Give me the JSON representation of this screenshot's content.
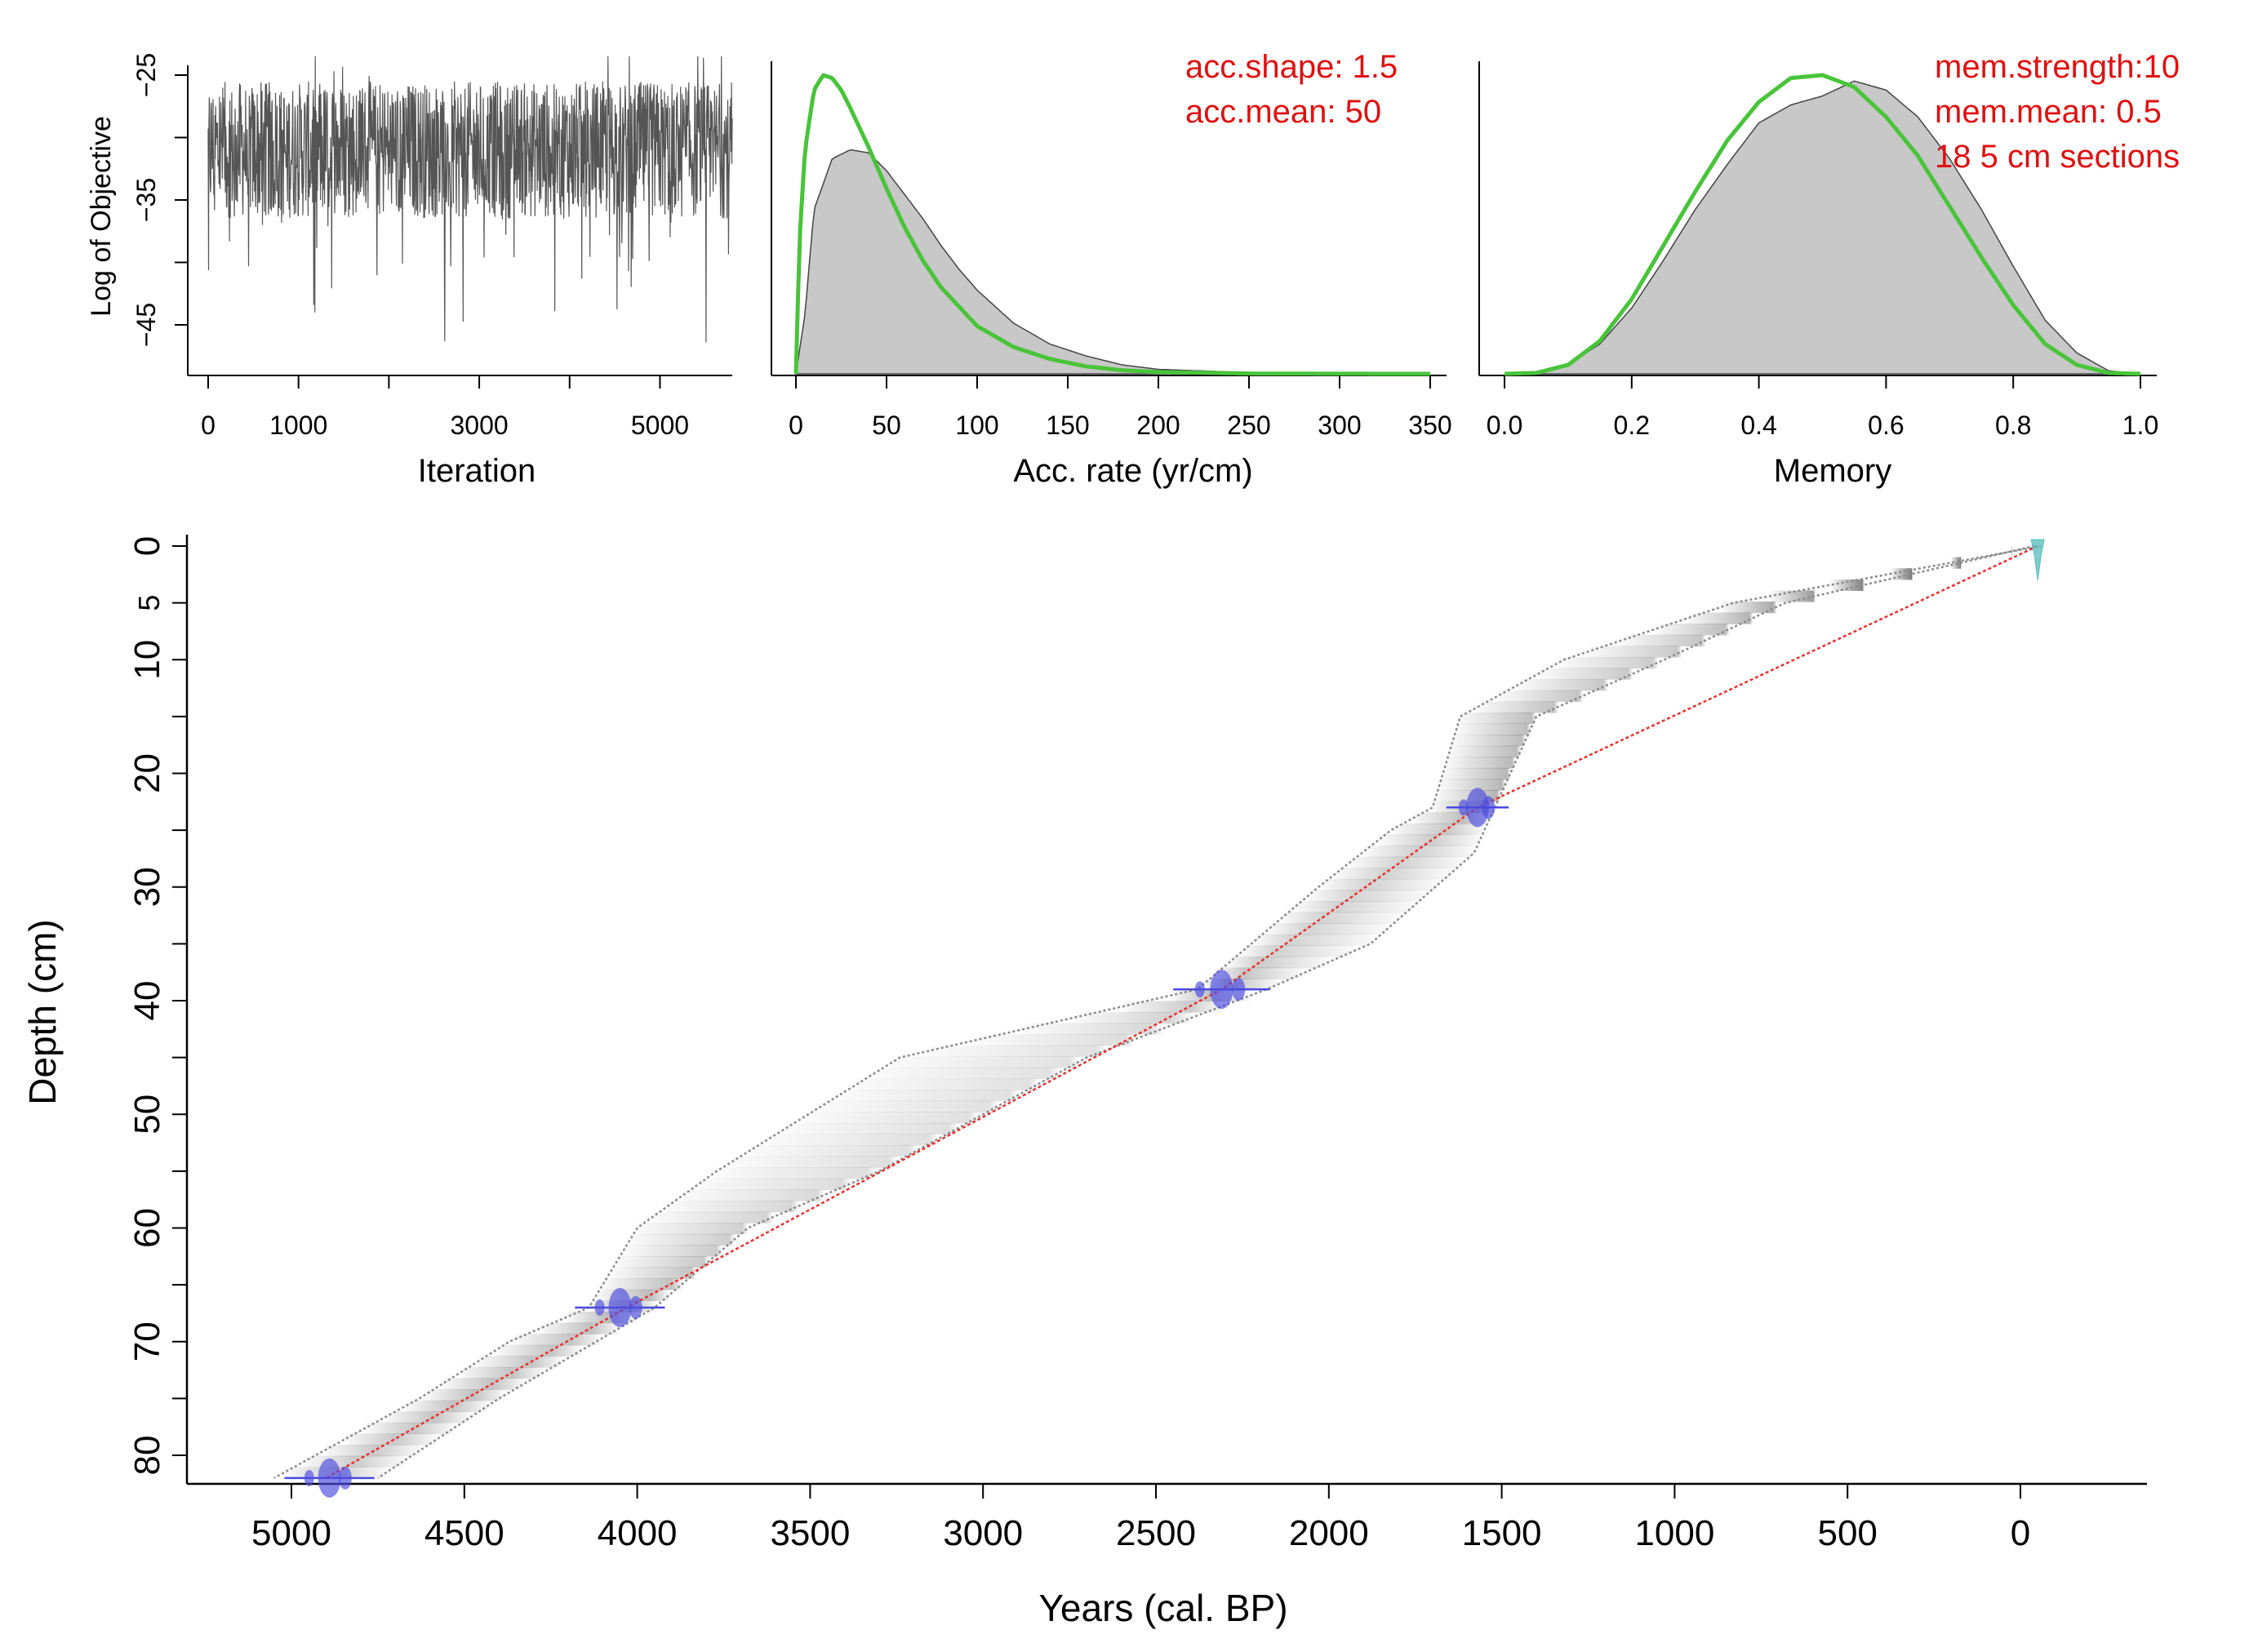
{
  "colors": {
    "trace": "#555555",
    "hist_fill": "#c8c8c8",
    "prior": "#49c43a",
    "mean_line": "#e83030",
    "ci_line": "#8a8a8a",
    "date_blue": "#4a4ae0",
    "date_cyan": "#5fbfbf",
    "annotation": "#e01010"
  },
  "chart_data": [
    {
      "type": "line",
      "name": "MCMC iteration trace",
      "xlabel": "Iteration",
      "ylabel": "Log of Objective",
      "xlim": [
        0,
        5800
      ],
      "ylim": [
        -48,
        -23
      ],
      "xticks": [
        0,
        1000,
        3000,
        5000
      ],
      "xticks_minor": [
        2000,
        4000
      ],
      "yticks": [
        -25,
        -35,
        -45
      ],
      "yticks_minor": [
        -30,
        -40
      ],
      "series": [
        {
          "name": "trace",
          "iterations": 5800,
          "mean": -31,
          "typical_range": [
            -38,
            -26
          ]
        }
      ]
    },
    {
      "type": "area",
      "name": "Accumulation rate prior and posterior",
      "xlabel": "Acc. rate (yr/cm)",
      "xlim": [
        0,
        350
      ],
      "xticks": [
        0,
        50,
        100,
        150,
        200,
        250,
        300,
        350
      ],
      "annotations": [
        "acc.shape: 1.5",
        "acc.mean: 50"
      ],
      "series": [
        {
          "name": "posterior",
          "x": [
            0,
            5,
            10,
            20,
            30,
            40,
            50,
            60,
            70,
            80,
            90,
            100,
            120,
            140,
            160,
            180,
            200,
            250,
            300,
            350
          ],
          "y": [
            0,
            0.2,
            0.55,
            0.72,
            0.75,
            0.74,
            0.68,
            0.6,
            0.52,
            0.43,
            0.35,
            0.28,
            0.17,
            0.1,
            0.06,
            0.03,
            0.015,
            0.004,
            0.001,
            0
          ]
        },
        {
          "name": "prior",
          "x": [
            0,
            2,
            5,
            10,
            15,
            20,
            25,
            30,
            40,
            50,
            60,
            70,
            80,
            100,
            120,
            140,
            160,
            180,
            200,
            250,
            300,
            350
          ],
          "y": [
            0,
            0.45,
            0.75,
            0.95,
            1.0,
            0.99,
            0.95,
            0.89,
            0.76,
            0.62,
            0.49,
            0.38,
            0.29,
            0.16,
            0.09,
            0.05,
            0.025,
            0.012,
            0.006,
            0.001,
            0.0002,
            0
          ]
        }
      ]
    },
    {
      "type": "area",
      "name": "Memory prior and posterior",
      "xlabel": "Memory",
      "xlim": [
        0,
        1
      ],
      "xticks": [
        0.0,
        0.2,
        0.4,
        0.6,
        0.8,
        1.0
      ],
      "annotations": [
        "mem.strength:10",
        "mem.mean: 0.5",
        "18 5 cm sections"
      ],
      "series": [
        {
          "name": "posterior",
          "x": [
            0,
            0.05,
            0.1,
            0.15,
            0.2,
            0.25,
            0.3,
            0.35,
            0.4,
            0.45,
            0.5,
            0.55,
            0.6,
            0.65,
            0.7,
            0.75,
            0.8,
            0.85,
            0.9,
            0.95,
            1.0
          ],
          "y": [
            0,
            0.005,
            0.03,
            0.1,
            0.22,
            0.38,
            0.55,
            0.7,
            0.84,
            0.9,
            0.93,
            0.98,
            0.95,
            0.86,
            0.72,
            0.55,
            0.36,
            0.18,
            0.07,
            0.01,
            0
          ]
        },
        {
          "name": "prior",
          "x": [
            0,
            0.05,
            0.1,
            0.15,
            0.2,
            0.25,
            0.3,
            0.35,
            0.4,
            0.45,
            0.5,
            0.55,
            0.6,
            0.65,
            0.7,
            0.75,
            0.8,
            0.85,
            0.9,
            0.95,
            1.0
          ],
          "y": [
            0,
            0.003,
            0.03,
            0.11,
            0.25,
            0.43,
            0.61,
            0.78,
            0.91,
            0.99,
            1.0,
            0.96,
            0.86,
            0.73,
            0.56,
            0.39,
            0.23,
            0.1,
            0.03,
            0.003,
            0
          ]
        }
      ]
    },
    {
      "type": "line",
      "name": "Age-depth model",
      "xlabel": "Years (cal. BP)",
      "ylabel": "Depth (cm)",
      "xlim": [
        5300,
        -380
      ],
      "ylim": [
        83,
        -1
      ],
      "xticks": [
        5000,
        4500,
        4000,
        3500,
        3000,
        2500,
        2000,
        1500,
        1000,
        500,
        0
      ],
      "yticks": [
        0,
        10,
        20,
        30,
        40,
        50,
        60,
        70,
        80
      ],
      "yticks_small": [
        5
      ],
      "yticks_minor": [
        15,
        25,
        35,
        45,
        55,
        65,
        75
      ],
      "series": [
        {
          "name": "mean age",
          "depth": [
            0,
            23,
            39,
            67,
            82
          ],
          "age": [
            -50,
            1570,
            2310,
            4030,
            4900
          ]
        },
        {
          "name": "young bound",
          "depth": [
            0,
            5,
            10,
            15,
            23,
            27,
            35,
            39,
            45,
            55,
            60,
            67,
            75,
            82
          ],
          "age": [
            -40,
            680,
            1030,
            1400,
            1520,
            1580,
            1880,
            2180,
            2700,
            3300,
            3680,
            3950,
            4400,
            4750
          ]
        },
        {
          "name": "old bound",
          "depth": [
            0,
            5,
            10,
            15,
            23,
            25,
            30,
            39,
            45,
            55,
            60,
            67,
            70,
            75,
            82
          ],
          "age": [
            -60,
            830,
            1320,
            1620,
            1700,
            1820,
            2030,
            2380,
            3240,
            3770,
            4000,
            4140,
            4370,
            4630,
            5050
          ]
        }
      ],
      "dates": [
        {
          "depth": 0,
          "age": -50,
          "kind": "modern"
        },
        {
          "depth": 23,
          "age": 1570,
          "kind": "14C"
        },
        {
          "depth": 39,
          "age": 2310,
          "kind": "14C"
        },
        {
          "depth": 67,
          "age": 4050,
          "kind": "14C"
        },
        {
          "depth": 82,
          "age": 4890,
          "kind": "14C"
        }
      ]
    }
  ]
}
